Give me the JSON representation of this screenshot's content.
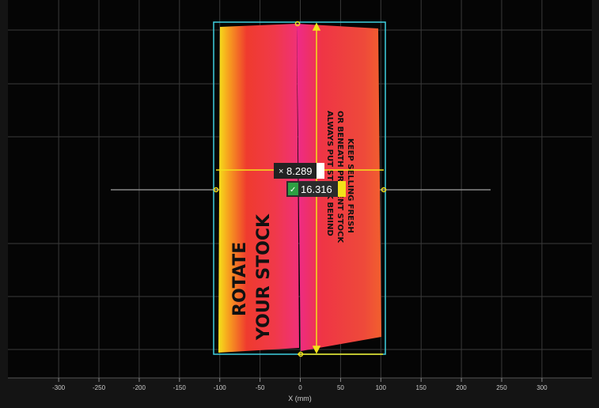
{
  "x_axis": {
    "label": "X (mm)",
    "range": [
      -363,
      362
    ],
    "ticks": [
      -300,
      -250,
      -200,
      -150,
      -100,
      -50,
      0,
      50,
      100,
      150,
      200,
      250,
      300
    ]
  },
  "measurements": [
    {
      "value": "8.289"
    },
    {
      "value": "16.316"
    }
  ],
  "sign": {
    "left": [
      "ROTATE",
      "YOUR STOCK"
    ],
    "right": [
      "ALWAYS PUT STOCK BEHIND",
      "OR BENEATH PRESENT STOCK",
      "KEEP SELLING FRESH"
    ]
  }
}
